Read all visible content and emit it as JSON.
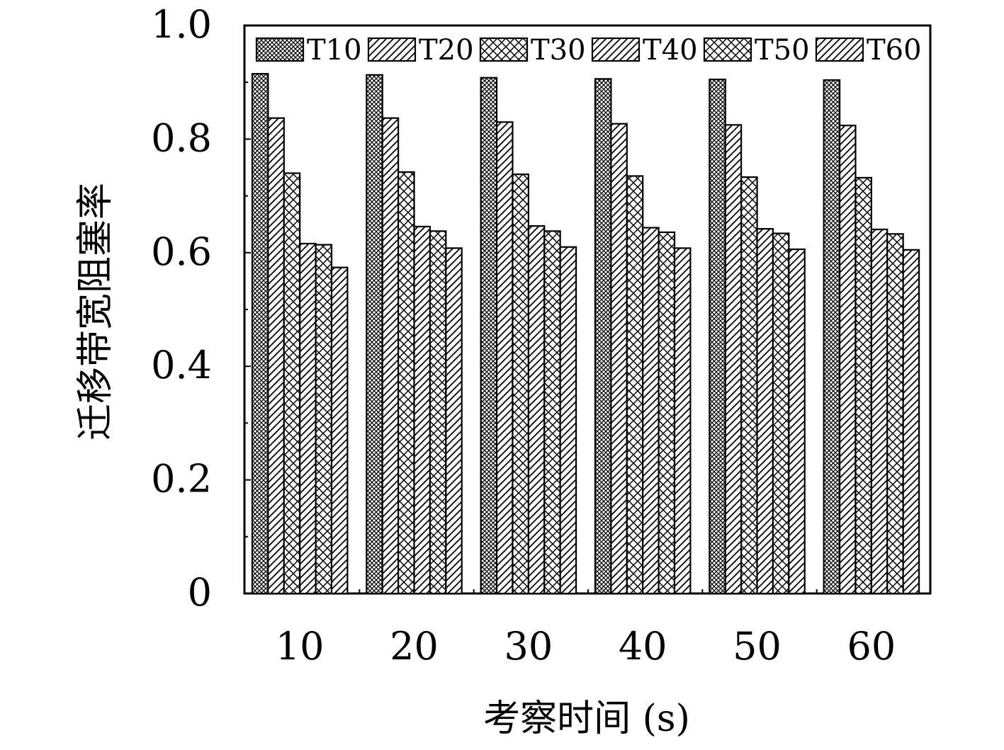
{
  "chart_data": {
    "type": "bar",
    "xlabel": "考察时间 (s)",
    "ylabel": "迁移带宽阻塞率",
    "ylim": [
      0,
      1.0
    ],
    "yticks": [
      "0",
      "0.2",
      "0.4",
      "0.6",
      "0.8",
      "1.0"
    ],
    "categories": [
      "10",
      "20",
      "30",
      "40",
      "50",
      "60"
    ],
    "legend_position": "top",
    "grid": false,
    "series": [
      {
        "name": "T10",
        "pattern": "dense-crosshatch",
        "values": [
          0.915,
          0.913,
          0.908,
          0.906,
          0.905,
          0.904
        ]
      },
      {
        "name": "T20",
        "pattern": "diagonal-hatch",
        "values": [
          0.837,
          0.837,
          0.83,
          0.827,
          0.825,
          0.824
        ]
      },
      {
        "name": "T30",
        "pattern": "crosshatch",
        "values": [
          0.74,
          0.742,
          0.738,
          0.735,
          0.733,
          0.732
        ]
      },
      {
        "name": "T40",
        "pattern": "diagonal-hatch",
        "values": [
          0.616,
          0.646,
          0.647,
          0.644,
          0.642,
          0.641
        ]
      },
      {
        "name": "T50",
        "pattern": "crosshatch",
        "values": [
          0.614,
          0.638,
          0.638,
          0.636,
          0.634,
          0.633
        ]
      },
      {
        "name": "T60",
        "pattern": "diagonal-hatch",
        "values": [
          0.574,
          0.608,
          0.61,
          0.608,
          0.606,
          0.605
        ]
      }
    ],
    "colors": {
      "stroke": "#000000",
      "fill": "#ffffff"
    }
  }
}
